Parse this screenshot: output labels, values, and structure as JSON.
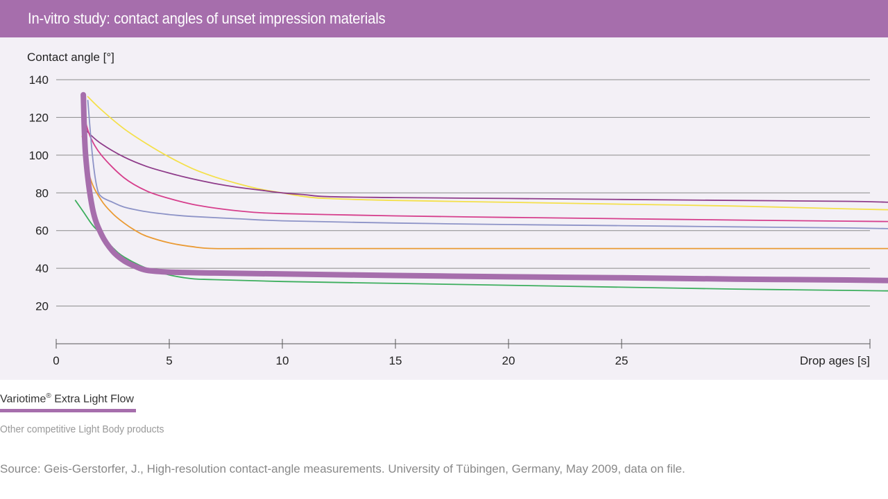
{
  "header": {
    "title": "In-vitro study: contact angles of unset impression materials"
  },
  "legend": {
    "primary_label": "Variotime",
    "primary_suffix": "Extra Light Flow",
    "secondary_label": "Other competitive Light Body products"
  },
  "source": "Source: Geis-Gerstorfer, J., High-resolution contact-angle measurements. University of Tübingen, Germany, May 2009, data on file.",
  "colors": {
    "header": "#a66eac",
    "plot_background": "#f3f0f6",
    "gridline": "#8a8a8a"
  },
  "chart_data": {
    "type": "line",
    "title": "",
    "xlabel": "Drop ages [s]",
    "ylabel": "Contact angle [°]",
    "xlim": [
      0,
      37
    ],
    "ylim": [
      0,
      140
    ],
    "xticks": [
      0,
      5,
      10,
      15,
      20,
      25
    ],
    "yticks": [
      20,
      40,
      60,
      80,
      100,
      120,
      140
    ],
    "grid": "horizontal",
    "series": [
      {
        "name": "Variotime® Extra Light Flow",
        "color": "#a66eac",
        "highlight": true,
        "x": [
          1.2,
          1.3,
          1.6,
          2.0,
          2.5,
          3.0,
          3.5,
          4.0,
          5.0,
          7.0,
          10.0,
          15.0,
          20.0,
          25.0,
          30.0,
          35.0,
          37.0
        ],
        "y": [
          132,
          100,
          72,
          58,
          49,
          44,
          41,
          39,
          38,
          37.5,
          37,
          36.2,
          35.5,
          35,
          34.3,
          33.8,
          33.5
        ]
      },
      {
        "color": "#f4e04a",
        "x": [
          1.4,
          2.0,
          3.0,
          4.0,
          5.0,
          6.0,
          7.0,
          8.0,
          9.0,
          10.0,
          11.0,
          12.0,
          15.0,
          20.0,
          25.0,
          30.0,
          35.0,
          37.0
        ],
        "y": [
          131,
          124,
          114,
          106,
          99,
          93,
          88.5,
          85,
          82,
          80,
          78,
          77,
          76,
          75,
          74,
          73,
          71.5,
          71
        ]
      },
      {
        "color": "#8e3b8a",
        "x": [
          1.2,
          1.5,
          2.0,
          3.0,
          4.0,
          5.0,
          6.0,
          7.0,
          8.0,
          9.0,
          10.0,
          11.0,
          12.0,
          15.0,
          20.0,
          25.0,
          30.0,
          35.0,
          37.0
        ],
        "y": [
          115,
          111,
          106,
          99,
          94,
          90.5,
          87.5,
          85,
          83,
          81.5,
          80,
          79,
          78,
          77.5,
          77,
          76.5,
          76,
          75.5,
          75
        ]
      },
      {
        "color": "#d63e8c",
        "x": [
          1.25,
          1.5,
          2.0,
          3.0,
          4.0,
          5.0,
          6.0,
          7.0,
          8.0,
          9.0,
          10.0,
          12.0,
          15.0,
          20.0,
          25.0,
          30.0,
          35.0,
          37.0
        ],
        "y": [
          120,
          110,
          100,
          88,
          81,
          77,
          74,
          72,
          70.5,
          69.5,
          69,
          68.5,
          67.8,
          67,
          66.3,
          65.6,
          65,
          64.8
        ]
      },
      {
        "color": "#8d93c7",
        "x": [
          1.4,
          1.6,
          1.8,
          2.0,
          2.5,
          3.0,
          4.0,
          5.0,
          6.0,
          8.0,
          10.0,
          15.0,
          20.0,
          25.0,
          30.0,
          35.0,
          37.0
        ],
        "y": [
          129,
          100,
          83,
          78,
          75,
          72.5,
          70,
          68.5,
          67.5,
          66.3,
          65.2,
          64,
          63.2,
          62.6,
          62,
          61.4,
          61
        ]
      },
      {
        "color": "#ea9a33",
        "x": [
          1.15,
          1.5,
          2.0,
          2.5,
          3.0,
          3.5,
          4.0,
          5.0,
          6.0,
          7.0,
          10.0,
          15.0,
          20.0,
          25.0,
          30.0,
          35.0,
          37.0
        ],
        "y": [
          110,
          88,
          76,
          69,
          64,
          60,
          57,
          53.5,
          51.5,
          50.5,
          50.5,
          50.5,
          50.5,
          50.5,
          50.5,
          50.5,
          50.5
        ]
      },
      {
        "color": "#3cae5d",
        "x": [
          0.85,
          1.2,
          1.6,
          2.0,
          2.5,
          3.0,
          4.0,
          5.0,
          6.0,
          7.0,
          10.0,
          15.0,
          20.0,
          25.0,
          30.0,
          35.0,
          37.0
        ],
        "y": [
          76,
          70,
          63,
          58,
          51,
          46,
          40,
          36.5,
          34.5,
          34,
          33,
          32,
          31,
          30,
          29,
          28.3,
          28
        ]
      }
    ]
  }
}
